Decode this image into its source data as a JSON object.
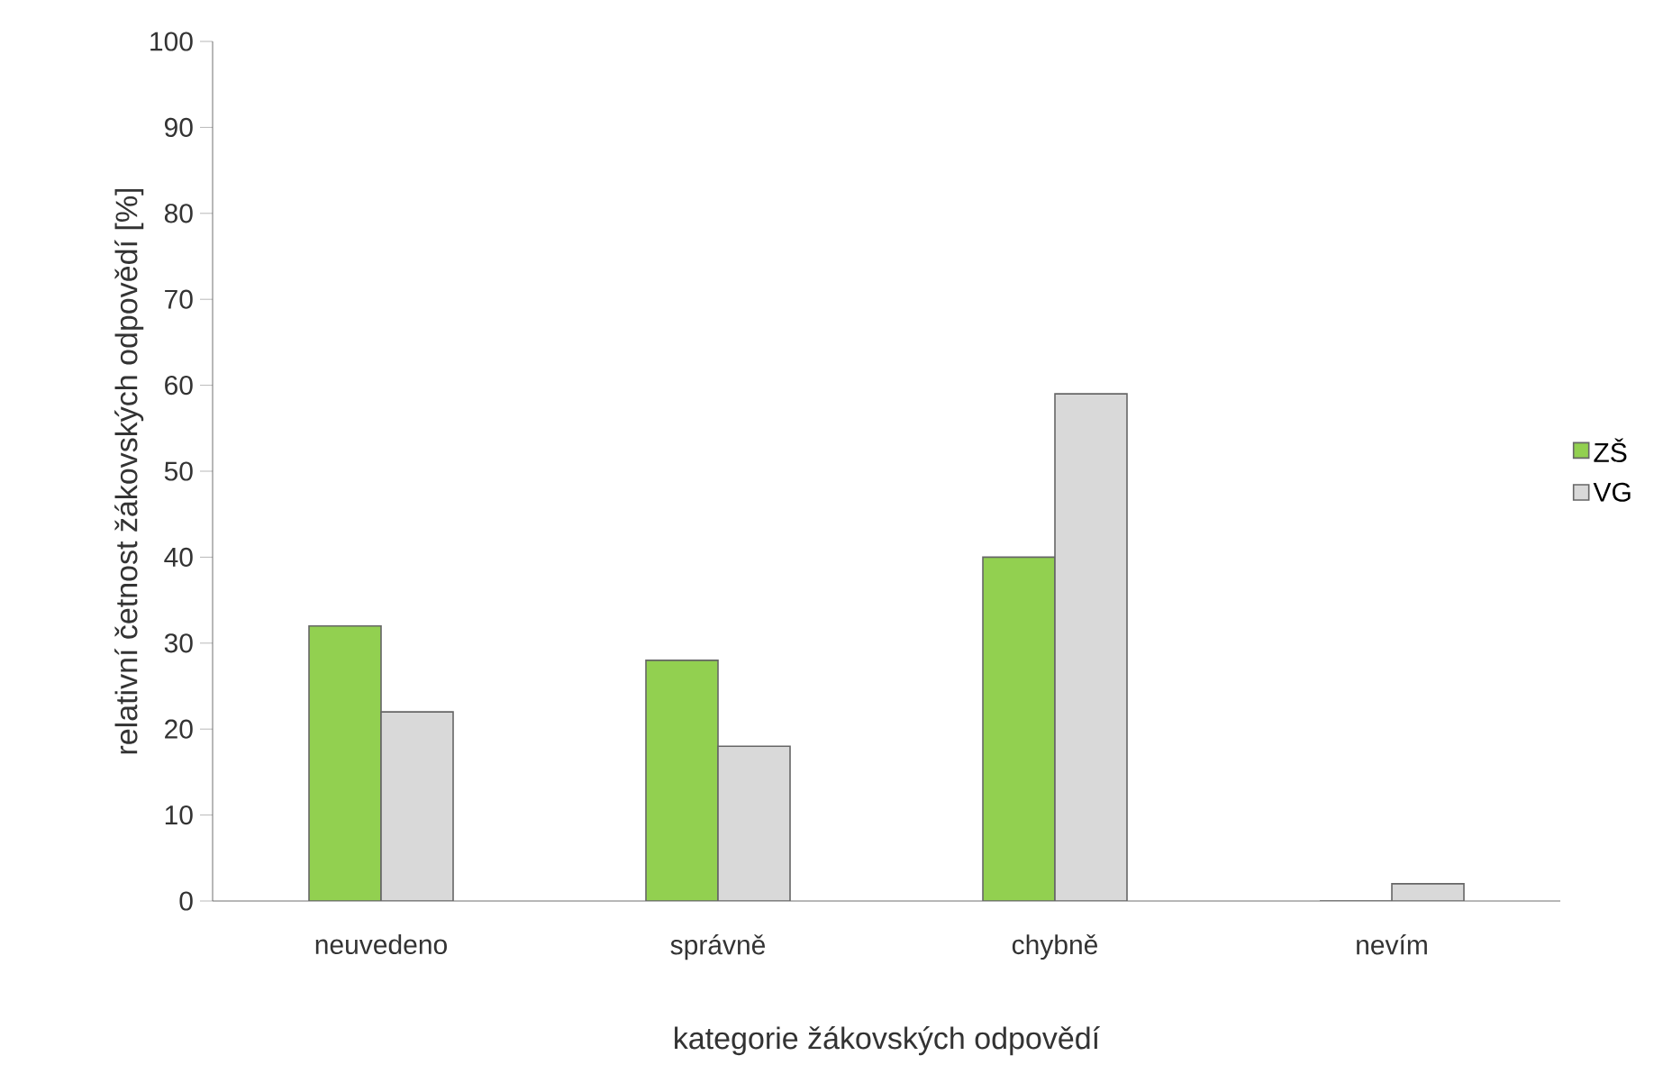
{
  "chart_data": {
    "type": "bar",
    "xlabel": "kategorie žákovských odpovědí",
    "ylabel": "relativní četnost žákovských odpovědí [%]",
    "categories": [
      "neuvedeno",
      "správně",
      "chybně",
      "nevím"
    ],
    "series": [
      {
        "name": "ZŠ",
        "color": "#92d050",
        "values": [
          32,
          28,
          40,
          0
        ]
      },
      {
        "name": "VG",
        "color": "#d9d9d9",
        "values": [
          22,
          18,
          59,
          2
        ]
      }
    ],
    "ylim": [
      0,
      100
    ],
    "yticks": [
      0,
      10,
      20,
      30,
      40,
      50,
      60,
      70,
      80,
      90,
      100
    ],
    "grid": false,
    "legend": "right"
  }
}
